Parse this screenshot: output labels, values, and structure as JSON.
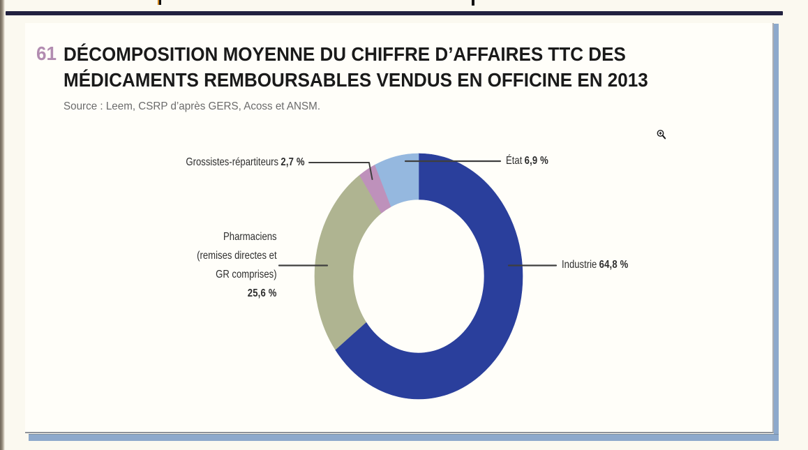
{
  "figure": {
    "number": "61",
    "title_line1": "DÉCOMPOSITION MOYENNE DU CHIFFRE D’AFFAIRES TTC DES",
    "title_line2": "MÉDICAMENTS REMBOURSABLES VENDUS EN OFFICINE EN 2013",
    "source": "Source : Leem, CSRP d’après GERS, Acoss et ANSM."
  },
  "chart_data": {
    "type": "pie",
    "variant": "donut",
    "title": "Décomposition moyenne du chiffre d'affaires TTC des médicaments remboursables vendus en officine en 2013",
    "unit": "%",
    "start_angle": "12-o-clock",
    "direction": "clockwise",
    "legend_position": "callout-labels",
    "segments": [
      {
        "id": "industrie",
        "label": "Industrie",
        "value": 64.8,
        "display": "64,8 %",
        "color": "#2a3f9c"
      },
      {
        "id": "pharmaciens",
        "label": "Pharmaciens (remises directes et GR comprises)",
        "label_lines": [
          "Pharmaciens",
          "(remises directes et",
          "GR comprises)"
        ],
        "value": 25.6,
        "display": "25,6 %",
        "color": "#afb491"
      },
      {
        "id": "grossistes-repartiteurs",
        "label": "Grossistes-répartiteurs",
        "value": 2.7,
        "display": "2,7 %",
        "color": "#be91bb"
      },
      {
        "id": "etat",
        "label": "État",
        "value": 6.9,
        "display": "6,9 %",
        "color": "#95b8df"
      }
    ]
  },
  "icons": {
    "zoom_cursor": "magnifying-glass-plus"
  },
  "colors": {
    "navy_rule": "#21213f",
    "panel_shadow": "#8da9cc",
    "figure_number": "#b28cb0",
    "title_text": "#1a1a1a",
    "source_text": "#6b6b6b",
    "label_text": "#2e2e2e",
    "leader_line": "#3f3f3f"
  }
}
